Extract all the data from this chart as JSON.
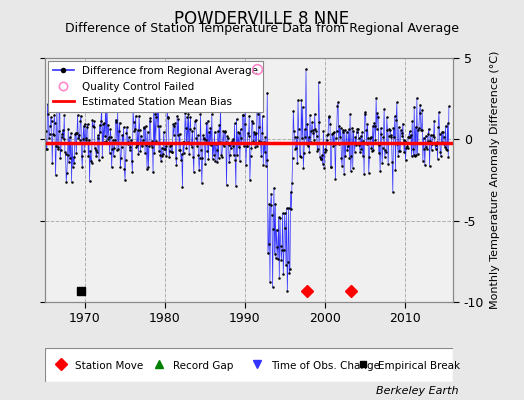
{
  "title": "POWDERVILLE 8 NNE",
  "subtitle": "Difference of Station Temperature Data from Regional Average",
  "ylabel": "Monthly Temperature Anomaly Difference (°C)",
  "xlabel_credit": "Berkeley Earth",
  "ylim": [
    -10,
    5
  ],
  "xlim": [
    1965.0,
    2016.0
  ],
  "xticks": [
    1970,
    1980,
    1990,
    2000,
    2010
  ],
  "yticks": [
    -10,
    -5,
    0,
    5
  ],
  "bias_value": -0.22,
  "station_moves": [
    1997.7,
    2003.2
  ],
  "empirical_break_x": 1969.5,
  "qc_fail_year": 1991.5,
  "qc_fail_value": 4.3,
  "bg_color": "#e8e8e8",
  "plot_bg_color": "#f0f0f0",
  "grid_color": "#b0b0b0",
  "line_color": "#3333ff",
  "bias_color": "#ff0000",
  "dot_color": "#000000",
  "qc_fail_color": "#ff88cc",
  "title_fontsize": 12,
  "subtitle_fontsize": 9,
  "tick_fontsize": 9,
  "ylabel_fontsize": 8
}
